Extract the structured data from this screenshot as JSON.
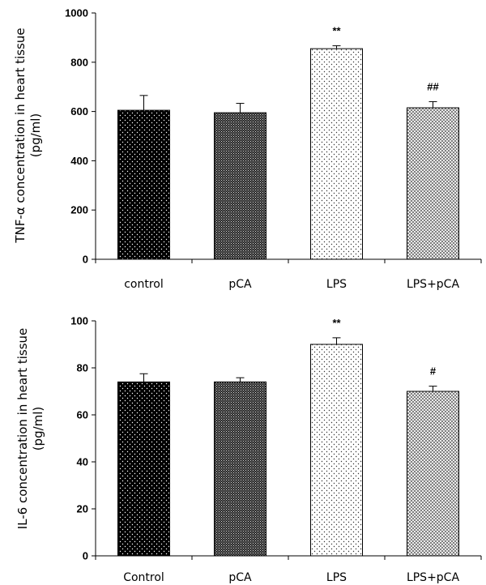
{
  "chart_data": [
    {
      "type": "bar",
      "ylabel_line1": "TNF-α concentration in heart tissue",
      "ylabel_line2": "(pg/ml)",
      "categories": [
        "control",
        "pCA",
        "LPS",
        "LPS+pCA"
      ],
      "values": [
        605,
        595,
        855,
        615
      ],
      "errors": [
        60,
        38,
        12,
        25
      ],
      "annotations": [
        "",
        "",
        "**",
        "##"
      ],
      "ylim": [
        0,
        1000
      ],
      "yticks": [
        0,
        200,
        400,
        600,
        800,
        1000
      ],
      "bar_patterns": [
        "dots-dark",
        "cross-dark",
        "dots-light",
        "cross-light"
      ]
    },
    {
      "type": "bar",
      "ylabel_line1": "IL-6  concentration in heart tissue",
      "ylabel_line2": "(pg/ml)",
      "categories": [
        "Control",
        "pCA",
        "LPS",
        "LPS+pCA"
      ],
      "values": [
        74,
        74,
        90,
        70
      ],
      "errors": [
        3.5,
        1.8,
        2.8,
        2.2
      ],
      "annotations": [
        "",
        "",
        "**",
        "#"
      ],
      "ylim": [
        0,
        100
      ],
      "yticks": [
        0,
        20,
        40,
        60,
        80,
        100
      ],
      "bar_patterns": [
        "dots-dark",
        "cross-dark",
        "dots-light",
        "cross-light"
      ]
    }
  ]
}
